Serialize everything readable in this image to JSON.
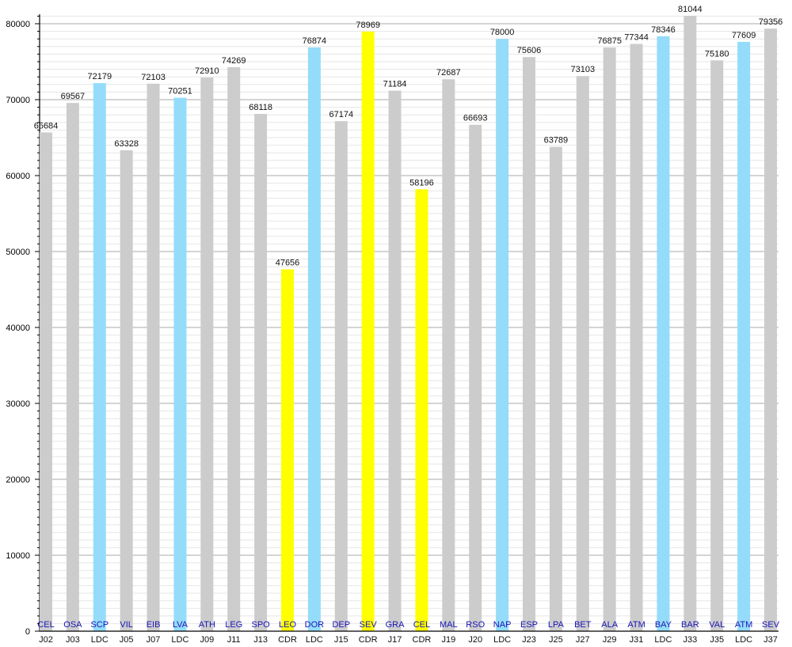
{
  "chart_data": {
    "type": "bar",
    "title": "",
    "xlabel": "",
    "ylabel": "",
    "ylim": [
      0,
      81044
    ],
    "yticks": [
      0,
      10000,
      20000,
      30000,
      40000,
      50000,
      60000,
      70000,
      80000
    ],
    "ytick_labels": [
      "0",
      "10000",
      "20000",
      "30000",
      "40000",
      "50000",
      "60000",
      "70000",
      "80000"
    ],
    "grid": "horizontal major every 10000, minor every 1000",
    "colors": {
      "J": "#cccccc",
      "LDC": "#94dcfa",
      "CDR": "#ffff00",
      "team_text": "#1a14b4"
    },
    "categories": [
      "J02",
      "J03",
      "LDC",
      "J05",
      "J07",
      "LDC",
      "J09",
      "J11",
      "J13",
      "CDR",
      "LDC",
      "J15",
      "CDR",
      "J17",
      "CDR",
      "J19",
      "J20",
      "LDC",
      "J23",
      "J25",
      "J27",
      "J29",
      "J31",
      "LDC",
      "J33",
      "J35",
      "LDC",
      "J37"
    ],
    "teams": [
      "CEL",
      "OSA",
      "SCP",
      "VIL",
      "EIB",
      "LVA",
      "ATH",
      "LEG",
      "SPO",
      "LEO",
      "DOR",
      "DEP",
      "SEV",
      "GRA",
      "CEL",
      "MAL",
      "RSO",
      "NAP",
      "ESP",
      "LPA",
      "BET",
      "ALA",
      "ATM",
      "BAY",
      "BAR",
      "VAL",
      "ATM",
      "SEV"
    ],
    "values": [
      65684,
      69567,
      72179,
      63328,
      72103,
      70251,
      72910,
      74269,
      68118,
      47656,
      76874,
      67174,
      78969,
      71184,
      58196,
      72687,
      66693,
      78000,
      75606,
      63789,
      73103,
      76875,
      77344,
      78346,
      81044,
      75180,
      77609,
      79356
    ],
    "value_labels": [
      "65684",
      "69567",
      "72179",
      "63328",
      "72103",
      "70251",
      "72910",
      "74269",
      "68118",
      "47656",
      "76874",
      "67174",
      "78969",
      "71184",
      "58196",
      "72687",
      "66693",
      "78000",
      "75606",
      "63789",
      "73103",
      "76875",
      "77344",
      "78346",
      "81044",
      "75180",
      "77609",
      "79356"
    ]
  }
}
